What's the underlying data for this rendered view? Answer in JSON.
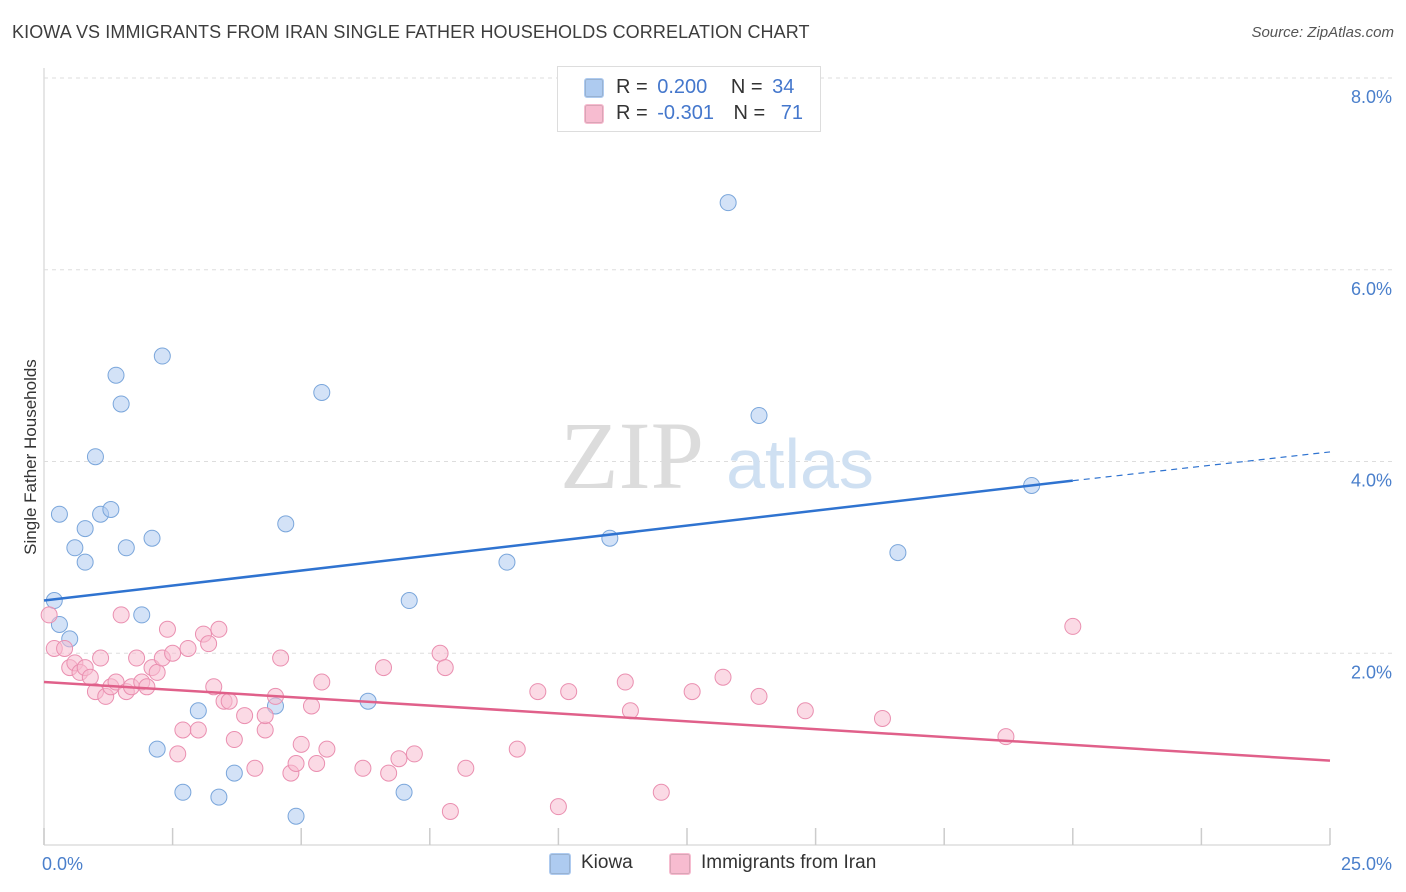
{
  "title": "KIOWA VS IMMIGRANTS FROM IRAN SINGLE FATHER HOUSEHOLDS CORRELATION CHART",
  "source": "Source: ZipAtlas.com",
  "watermark": {
    "zip": "ZIP",
    "atlas": "atlas"
  },
  "stats": [
    {
      "r_label": "R =",
      "r_value": "0.200",
      "n_label": "N =",
      "n_value": "34",
      "color": "#aecbf0"
    },
    {
      "r_label": "R =",
      "r_value": "-0.301",
      "n_label": "N =",
      "n_value": "71",
      "color": "#f7bcd0"
    }
  ],
  "legend": [
    {
      "label": "Kiowa",
      "color": "#aecbf0"
    },
    {
      "label": "Immigrants from Iran",
      "color": "#f7bcd0"
    }
  ],
  "chart_data": {
    "type": "scatter",
    "title": "KIOWA VS IMMIGRANTS FROM IRAN SINGLE FATHER HOUSEHOLDS CORRELATION CHART",
    "xlabel": "",
    "ylabel": "Single Father Households",
    "xlim": [
      0,
      25
    ],
    "ylim": [
      0,
      8
    ],
    "x_tick_labels": [
      "0.0%",
      "25.0%"
    ],
    "y_ticks": [
      2,
      4,
      6,
      8
    ],
    "y_tick_labels": [
      "2.0%",
      "4.0%",
      "6.0%",
      "8.0%"
    ],
    "grid": true,
    "legend_position": "bottom",
    "series": [
      {
        "name": "Kiowa",
        "color": "#aecbf0",
        "stroke": "#7aa6db",
        "trend_color": "#2f73d0",
        "trend": {
          "x0": 0,
          "y0": 2.55,
          "x1": 20,
          "y1": 3.8,
          "dash_to_x": 25,
          "dash_to_y": 4.1
        },
        "points": [
          [
            0.2,
            2.55
          ],
          [
            0.3,
            2.3
          ],
          [
            0.3,
            3.45
          ],
          [
            0.5,
            2.15
          ],
          [
            0.6,
            3.1
          ],
          [
            0.8,
            3.3
          ],
          [
            0.8,
            2.95
          ],
          [
            1.0,
            4.05
          ],
          [
            1.1,
            3.45
          ],
          [
            1.3,
            3.5
          ],
          [
            1.4,
            4.9
          ],
          [
            1.5,
            4.6
          ],
          [
            1.6,
            3.1
          ],
          [
            1.9,
            2.4
          ],
          [
            2.1,
            3.2
          ],
          [
            2.2,
            1.0
          ],
          [
            2.3,
            5.1
          ],
          [
            2.7,
            0.55
          ],
          [
            3.0,
            1.4
          ],
          [
            3.4,
            0.5
          ],
          [
            3.7,
            0.75
          ],
          [
            4.5,
            1.45
          ],
          [
            4.7,
            3.35
          ],
          [
            4.9,
            0.3
          ],
          [
            5.4,
            4.72
          ],
          [
            6.3,
            1.5
          ],
          [
            7.0,
            0.55
          ],
          [
            7.1,
            2.55
          ],
          [
            9.0,
            2.95
          ],
          [
            11.0,
            3.2
          ],
          [
            13.3,
            6.7
          ],
          [
            13.9,
            4.48
          ],
          [
            16.6,
            3.05
          ],
          [
            19.2,
            3.75
          ]
        ]
      },
      {
        "name": "Immigrants from Iran",
        "color": "#f7bcd0",
        "stroke": "#ea8fb0",
        "trend_color": "#e0608a",
        "trend": {
          "x0": 0,
          "y0": 1.7,
          "x1": 25,
          "y1": 0.88
        },
        "points": [
          [
            0.1,
            2.4
          ],
          [
            0.2,
            2.05
          ],
          [
            0.4,
            2.05
          ],
          [
            0.5,
            1.85
          ],
          [
            0.6,
            1.9
          ],
          [
            0.7,
            1.8
          ],
          [
            0.8,
            1.85
          ],
          [
            0.9,
            1.75
          ],
          [
            1.0,
            1.6
          ],
          [
            1.1,
            1.95
          ],
          [
            1.2,
            1.55
          ],
          [
            1.3,
            1.65
          ],
          [
            1.4,
            1.7
          ],
          [
            1.5,
            2.4
          ],
          [
            1.6,
            1.6
          ],
          [
            1.7,
            1.65
          ],
          [
            1.8,
            1.95
          ],
          [
            1.9,
            1.7
          ],
          [
            2.0,
            1.65
          ],
          [
            2.1,
            1.85
          ],
          [
            2.2,
            1.8
          ],
          [
            2.3,
            1.95
          ],
          [
            2.4,
            2.25
          ],
          [
            2.5,
            2.0
          ],
          [
            2.6,
            0.95
          ],
          [
            2.7,
            1.2
          ],
          [
            2.8,
            2.05
          ],
          [
            3.0,
            1.2
          ],
          [
            3.1,
            2.2
          ],
          [
            3.2,
            2.1
          ],
          [
            3.3,
            1.65
          ],
          [
            3.4,
            2.25
          ],
          [
            3.5,
            1.5
          ],
          [
            3.6,
            1.5
          ],
          [
            3.7,
            1.1
          ],
          [
            3.9,
            1.35
          ],
          [
            4.1,
            0.8
          ],
          [
            4.3,
            1.2
          ],
          [
            4.3,
            1.35
          ],
          [
            4.5,
            1.55
          ],
          [
            4.6,
            1.95
          ],
          [
            4.8,
            0.75
          ],
          [
            4.9,
            0.85
          ],
          [
            5.0,
            1.05
          ],
          [
            5.2,
            1.45
          ],
          [
            5.3,
            0.85
          ],
          [
            5.4,
            1.7
          ],
          [
            5.5,
            1.0
          ],
          [
            6.2,
            0.8
          ],
          [
            6.6,
            1.85
          ],
          [
            6.7,
            0.75
          ],
          [
            6.9,
            0.9
          ],
          [
            7.2,
            0.95
          ],
          [
            7.7,
            2.0
          ],
          [
            7.8,
            1.85
          ],
          [
            7.9,
            0.35
          ],
          [
            8.2,
            0.8
          ],
          [
            9.2,
            1.0
          ],
          [
            9.6,
            1.6
          ],
          [
            10.0,
            0.4
          ],
          [
            10.2,
            1.6
          ],
          [
            11.3,
            1.7
          ],
          [
            11.4,
            1.4
          ],
          [
            12.0,
            0.55
          ],
          [
            12.6,
            1.6
          ],
          [
            13.2,
            1.75
          ],
          [
            13.9,
            1.55
          ],
          [
            14.8,
            1.4
          ],
          [
            16.3,
            1.32
          ],
          [
            18.7,
            1.13
          ],
          [
            20.0,
            2.28
          ]
        ]
      }
    ]
  }
}
